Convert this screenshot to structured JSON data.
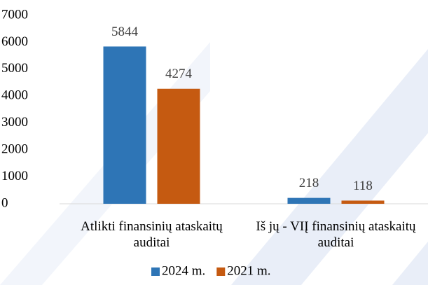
{
  "chart_data": {
    "type": "bar",
    "categories": [
      "Atlikti finansinių ataskaitų auditai",
      "Iš jų - VIĮ finansinių ataskaitų auditai"
    ],
    "series": [
      {
        "name": "2024 m.",
        "color": "#2e75b6",
        "values": [
          5844,
          218
        ]
      },
      {
        "name": "2021 m.",
        "color": "#c55a11",
        "values": [
          4274,
          118
        ]
      }
    ],
    "ylim": [
      0,
      7000
    ],
    "yticks": [
      0,
      1000,
      2000,
      3000,
      4000,
      5000,
      6000,
      7000
    ],
    "grid": false,
    "legend": "bottom"
  }
}
